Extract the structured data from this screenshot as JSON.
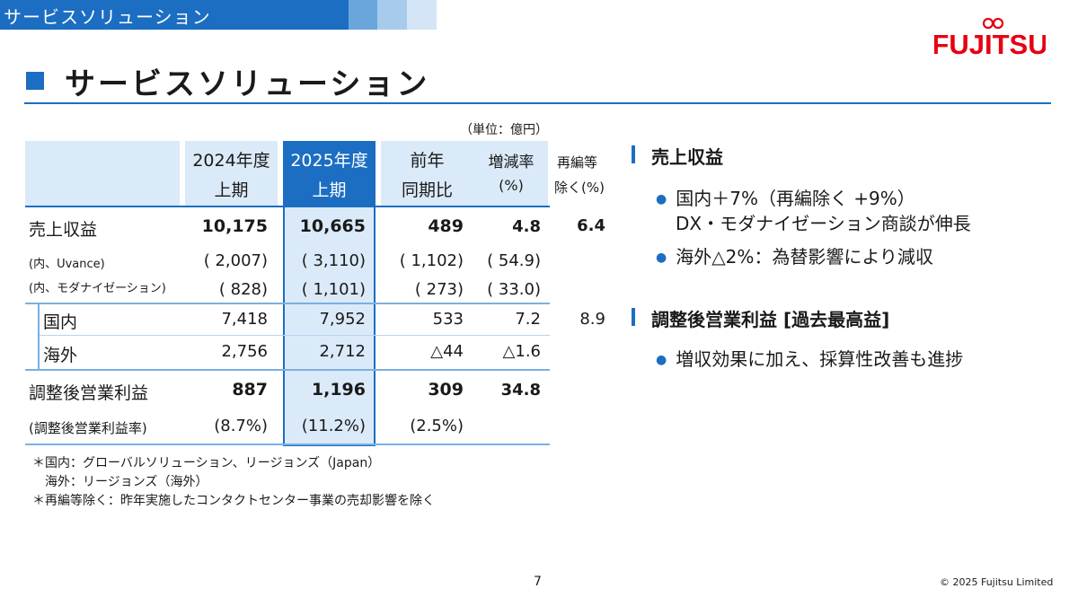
{
  "header": {
    "section_label": "サービスソリューション",
    "title": "サービスソリューション",
    "logo_text": "FUJITSU"
  },
  "colors": {
    "accent": "#1b6ec2",
    "highlight_bg": "#dbeaf8",
    "logo_red": "#e60012"
  },
  "table": {
    "unit": "（単位：億円）",
    "headers": {
      "col1": [
        "2024年度",
        "上期"
      ],
      "col2": [
        "2025年度",
        "上期"
      ],
      "col3": [
        "前年",
        "同期比"
      ],
      "col4": [
        "増減率",
        "(%)"
      ],
      "col5": [
        "再編等",
        "除く(%)"
      ]
    },
    "rows": [
      {
        "label": "売上収益",
        "v1": "10,175",
        "v2": "10,665",
        "v3": "489",
        "v4": "4.8",
        "v5": "6.4"
      },
      {
        "label": "(内、Uvance)",
        "v1": "( 2,007)",
        "v2": "( 3,110)",
        "v3": "( 1,102)",
        "v4": "( 54.9)"
      },
      {
        "label": "(内、モダナイゼーション)",
        "v1": "( 828)",
        "v2": "( 1,101)",
        "v3": "( 273)",
        "v4": "( 33.0)"
      },
      {
        "label": "国内",
        "v1": "7,418",
        "v2": "7,952",
        "v3": "533",
        "v4": "7.2",
        "v5": "8.9"
      },
      {
        "label": "海外",
        "v1": "2,756",
        "v2": "2,712",
        "v3": "△44",
        "v4": "△1.6"
      },
      {
        "label": "調整後営業利益",
        "v1": "887",
        "v2": "1,196",
        "v3": "309",
        "v4": "34.8"
      },
      {
        "label": "(調整後営業利益率)",
        "v1": "(8.7%)",
        "v2": "(11.2%)",
        "v3": "(2.5%)"
      }
    ]
  },
  "notes": [
    "＊国内：グローバルソリューション、リージョンズ（Japan）",
    "海外：リージョンズ（海外）",
    "＊再編等除く：昨年実施したコンタクトセンター事業の売却影響を除く"
  ],
  "sections": [
    {
      "heading": "売上収益",
      "bullets": [
        {
          "line1": "国内＋7%（再編除く +9%）",
          "line2": "DX・モダナイゼーション商談が伸長"
        },
        {
          "line1": "海外△2%：為替影響により減収"
        }
      ]
    },
    {
      "heading": "調整後営業利益 [過去最高益]",
      "bullets": [
        {
          "line1": "増収効果に加え、採算性改善も進捗"
        }
      ]
    }
  ],
  "footer": {
    "page": "7",
    "copyright": "© 2025 Fujitsu Limited"
  }
}
